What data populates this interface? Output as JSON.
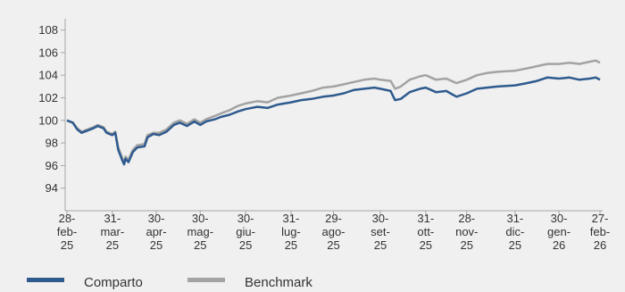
{
  "chart_data": {
    "type": "line",
    "title": "",
    "xlabel": "",
    "ylabel": "",
    "ylim": [
      92,
      109
    ],
    "y_ticks": [
      94,
      96,
      98,
      100,
      102,
      104,
      106,
      108
    ],
    "x_ticks": [
      {
        "date": "2025-02-28",
        "lines": [
          "28-",
          "feb-",
          "25"
        ]
      },
      {
        "date": "2025-03-31",
        "lines": [
          "31-",
          "mar-",
          "25"
        ]
      },
      {
        "date": "2025-04-30",
        "lines": [
          "30-",
          "apr-",
          "25"
        ]
      },
      {
        "date": "2025-05-30",
        "lines": [
          "30-",
          "mag-",
          "25"
        ]
      },
      {
        "date": "2025-06-30",
        "lines": [
          "30-",
          "giu-",
          "25"
        ]
      },
      {
        "date": "2025-07-31",
        "lines": [
          "31-",
          "lug-",
          "25"
        ]
      },
      {
        "date": "2025-08-29",
        "lines": [
          "29-",
          "ago-",
          "25"
        ]
      },
      {
        "date": "2025-09-30",
        "lines": [
          "30-",
          "set-",
          "25"
        ]
      },
      {
        "date": "2025-10-31",
        "lines": [
          "31-",
          "ott-",
          "25"
        ]
      },
      {
        "date": "2025-11-28",
        "lines": [
          "28-",
          "nov-",
          "25"
        ]
      },
      {
        "date": "2025-12-31",
        "lines": [
          "31-",
          "dic-",
          "25"
        ]
      },
      {
        "date": "2026-01-30",
        "lines": [
          "30-",
          "gen-",
          "26"
        ]
      },
      {
        "date": "2026-02-27",
        "lines": [
          "27-",
          "feb-",
          "26"
        ]
      }
    ],
    "grid": false,
    "legend_position": "bottom-left",
    "series": [
      {
        "name": "Comparto",
        "color": "#2e5a8e",
        "points": [
          [
            "2025-02-28",
            100.0
          ],
          [
            "2025-03-04",
            99.8
          ],
          [
            "2025-03-07",
            99.2
          ],
          [
            "2025-03-10",
            98.9
          ],
          [
            "2025-03-14",
            99.1
          ],
          [
            "2025-03-18",
            99.3
          ],
          [
            "2025-03-21",
            99.5
          ],
          [
            "2025-03-25",
            99.3
          ],
          [
            "2025-03-27",
            98.9
          ],
          [
            "2025-03-31",
            98.7
          ],
          [
            "2025-04-02",
            98.9
          ],
          [
            "2025-04-04",
            97.4
          ],
          [
            "2025-04-07",
            96.4
          ],
          [
            "2025-04-08",
            96.1
          ],
          [
            "2025-04-09",
            96.6
          ],
          [
            "2025-04-11",
            96.3
          ],
          [
            "2025-04-14",
            97.2
          ],
          [
            "2025-04-17",
            97.6
          ],
          [
            "2025-04-22",
            97.7
          ],
          [
            "2025-04-24",
            98.5
          ],
          [
            "2025-04-28",
            98.8
          ],
          [
            "2025-05-02",
            98.7
          ],
          [
            "2025-05-07",
            99.0
          ],
          [
            "2025-05-12",
            99.6
          ],
          [
            "2025-05-16",
            99.8
          ],
          [
            "2025-05-21",
            99.5
          ],
          [
            "2025-05-26",
            99.9
          ],
          [
            "2025-05-30",
            99.6
          ],
          [
            "2025-06-03",
            99.9
          ],
          [
            "2025-06-09",
            100.1
          ],
          [
            "2025-06-13",
            100.3
          ],
          [
            "2025-06-19",
            100.5
          ],
          [
            "2025-06-25",
            100.8
          ],
          [
            "2025-06-30",
            101.0
          ],
          [
            "2025-07-08",
            101.2
          ],
          [
            "2025-07-15",
            101.1
          ],
          [
            "2025-07-22",
            101.4
          ],
          [
            "2025-07-31",
            101.6
          ],
          [
            "2025-08-07",
            101.8
          ],
          [
            "2025-08-14",
            101.9
          ],
          [
            "2025-08-22",
            102.1
          ],
          [
            "2025-08-29",
            102.2
          ],
          [
            "2025-09-05",
            102.4
          ],
          [
            "2025-09-12",
            102.7
          ],
          [
            "2025-09-19",
            102.8
          ],
          [
            "2025-09-26",
            102.9
          ],
          [
            "2025-09-30",
            102.8
          ],
          [
            "2025-10-07",
            102.6
          ],
          [
            "2025-10-10",
            101.8
          ],
          [
            "2025-10-14",
            101.9
          ],
          [
            "2025-10-20",
            102.5
          ],
          [
            "2025-10-27",
            102.8
          ],
          [
            "2025-10-31",
            102.9
          ],
          [
            "2025-11-07",
            102.5
          ],
          [
            "2025-11-14",
            102.6
          ],
          [
            "2025-11-21",
            102.1
          ],
          [
            "2025-11-28",
            102.4
          ],
          [
            "2025-12-05",
            102.8
          ],
          [
            "2025-12-12",
            102.9
          ],
          [
            "2025-12-19",
            103.0
          ],
          [
            "2025-12-31",
            103.1
          ],
          [
            "2026-01-08",
            103.3
          ],
          [
            "2026-01-15",
            103.5
          ],
          [
            "2026-01-22",
            103.8
          ],
          [
            "2026-01-30",
            103.7
          ],
          [
            "2026-02-06",
            103.8
          ],
          [
            "2026-02-13",
            103.6
          ],
          [
            "2026-02-20",
            103.7
          ],
          [
            "2026-02-24",
            103.8
          ],
          [
            "2026-02-27",
            103.6
          ]
        ]
      },
      {
        "name": "Benchmark",
        "color": "#a3a3a3",
        "points": [
          [
            "2025-02-28",
            100.0
          ],
          [
            "2025-03-04",
            99.8
          ],
          [
            "2025-03-07",
            99.3
          ],
          [
            "2025-03-10",
            99.0
          ],
          [
            "2025-03-14",
            99.2
          ],
          [
            "2025-03-18",
            99.4
          ],
          [
            "2025-03-21",
            99.6
          ],
          [
            "2025-03-25",
            99.4
          ],
          [
            "2025-03-27",
            99.0
          ],
          [
            "2025-03-31",
            98.8
          ],
          [
            "2025-04-02",
            99.0
          ],
          [
            "2025-04-04",
            97.6
          ],
          [
            "2025-04-07",
            96.6
          ],
          [
            "2025-04-08",
            96.3
          ],
          [
            "2025-04-09",
            96.8
          ],
          [
            "2025-04-11",
            96.5
          ],
          [
            "2025-04-14",
            97.4
          ],
          [
            "2025-04-17",
            97.8
          ],
          [
            "2025-04-22",
            97.9
          ],
          [
            "2025-04-24",
            98.7
          ],
          [
            "2025-04-28",
            98.9
          ],
          [
            "2025-05-02",
            98.9
          ],
          [
            "2025-05-07",
            99.2
          ],
          [
            "2025-05-12",
            99.8
          ],
          [
            "2025-05-16",
            100.0
          ],
          [
            "2025-05-21",
            99.7
          ],
          [
            "2025-05-26",
            100.1
          ],
          [
            "2025-05-30",
            99.8
          ],
          [
            "2025-06-03",
            100.1
          ],
          [
            "2025-06-09",
            100.4
          ],
          [
            "2025-06-13",
            100.6
          ],
          [
            "2025-06-19",
            100.9
          ],
          [
            "2025-06-25",
            101.3
          ],
          [
            "2025-06-30",
            101.5
          ],
          [
            "2025-07-08",
            101.7
          ],
          [
            "2025-07-15",
            101.6
          ],
          [
            "2025-07-22",
            102.0
          ],
          [
            "2025-07-31",
            102.2
          ],
          [
            "2025-08-07",
            102.4
          ],
          [
            "2025-08-14",
            102.6
          ],
          [
            "2025-08-22",
            102.9
          ],
          [
            "2025-08-29",
            103.0
          ],
          [
            "2025-09-05",
            103.2
          ],
          [
            "2025-09-12",
            103.4
          ],
          [
            "2025-09-19",
            103.6
          ],
          [
            "2025-09-26",
            103.7
          ],
          [
            "2025-09-30",
            103.6
          ],
          [
            "2025-10-07",
            103.5
          ],
          [
            "2025-10-10",
            102.8
          ],
          [
            "2025-10-14",
            103.0
          ],
          [
            "2025-10-20",
            103.6
          ],
          [
            "2025-10-27",
            103.9
          ],
          [
            "2025-10-31",
            104.0
          ],
          [
            "2025-11-07",
            103.6
          ],
          [
            "2025-11-14",
            103.7
          ],
          [
            "2025-11-21",
            103.3
          ],
          [
            "2025-11-28",
            103.6
          ],
          [
            "2025-12-05",
            104.0
          ],
          [
            "2025-12-12",
            104.2
          ],
          [
            "2025-12-19",
            104.3
          ],
          [
            "2025-12-31",
            104.4
          ],
          [
            "2026-01-08",
            104.6
          ],
          [
            "2026-01-15",
            104.8
          ],
          [
            "2026-01-22",
            105.0
          ],
          [
            "2026-01-30",
            105.0
          ],
          [
            "2026-02-06",
            105.1
          ],
          [
            "2026-02-13",
            105.0
          ],
          [
            "2026-02-20",
            105.2
          ],
          [
            "2026-02-24",
            105.3
          ],
          [
            "2026-02-27",
            105.1
          ]
        ]
      }
    ]
  }
}
